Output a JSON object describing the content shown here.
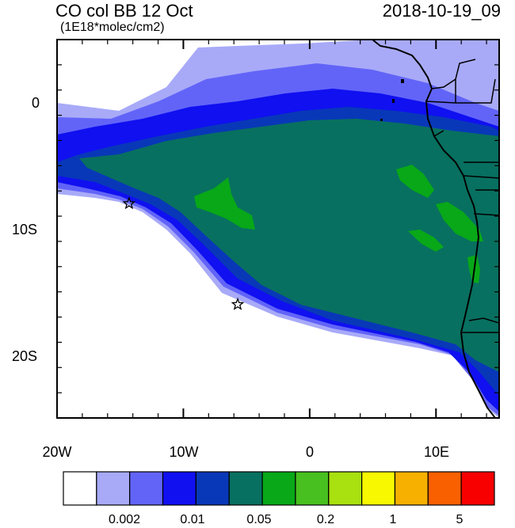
{
  "header": {
    "title": "CO col BB 12 Oct",
    "units": "(1E18*molec/cm2)",
    "datetime": "2018-10-19_09"
  },
  "map": {
    "lon_range": [
      -20,
      15
    ],
    "lat_range": [
      -25,
      5
    ],
    "y_ticks": [
      "0",
      "10S",
      "20S"
    ],
    "x_ticks": [
      "20W",
      "10W",
      "0",
      "10E"
    ],
    "star_markers": [
      {
        "name": "star-marker-1",
        "lon": -14.3,
        "lat": -8.0
      },
      {
        "name": "star-marker-2",
        "lon": -5.7,
        "lat": -16.0
      }
    ]
  },
  "colorbar": {
    "colors": [
      "#ffffff",
      "#a8aaf8",
      "#6264f8",
      "#1010f0",
      "#0838b8",
      "#087060",
      "#08a818",
      "#48c020",
      "#a8e010",
      "#f8f800",
      "#f8b000",
      "#f86000",
      "#f80000"
    ],
    "labels": [
      "0.002",
      "0.01",
      "0.05",
      "0.2",
      "1",
      "5"
    ]
  }
}
